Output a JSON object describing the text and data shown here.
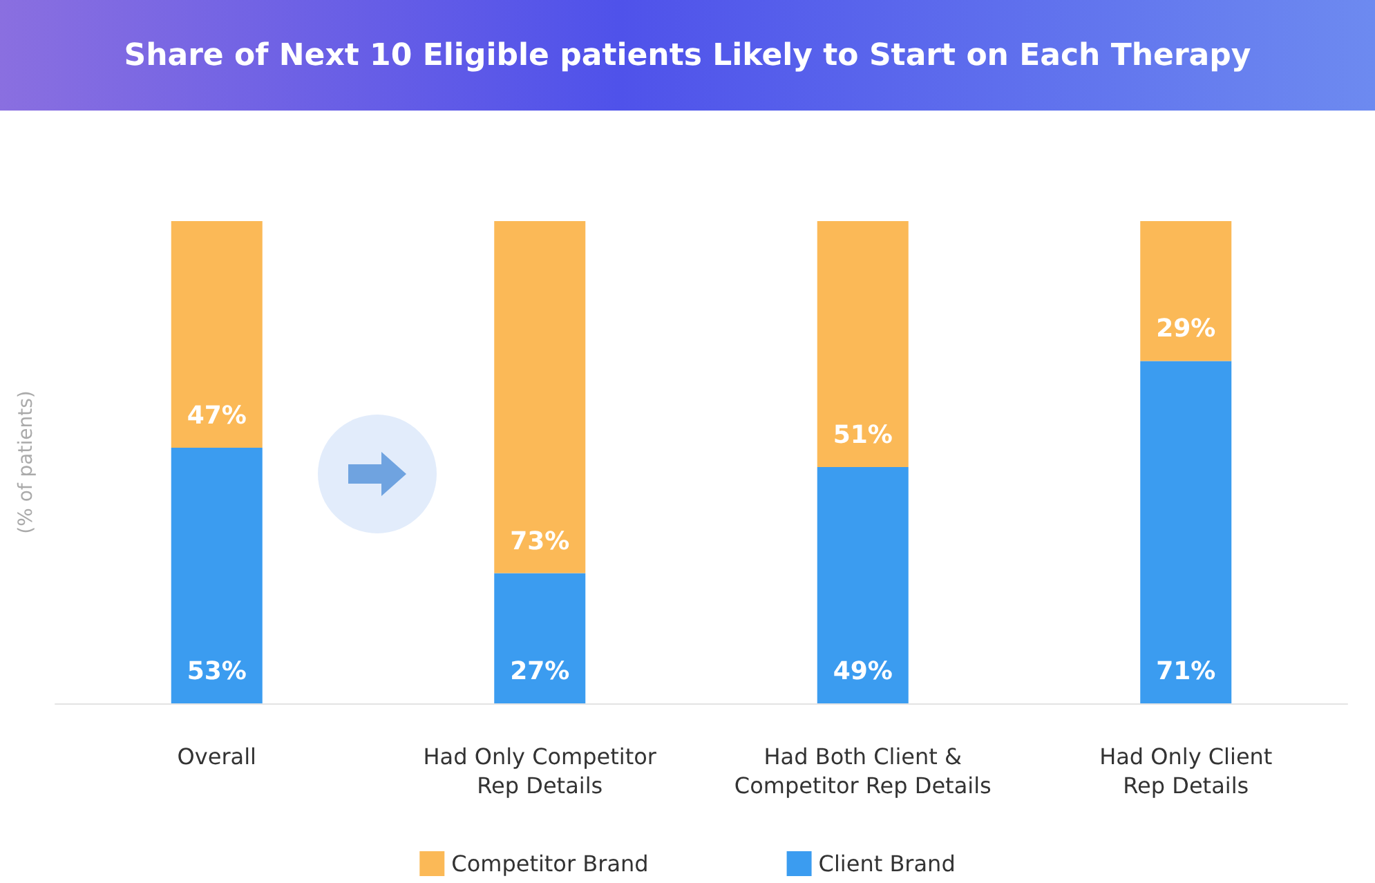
{
  "chart_data": {
    "type": "bar",
    "title": "Share of Next 10 Eligible patients Likely to Start on Each Therapy",
    "ylabel": "(% of patients)",
    "categories": [
      "Overall",
      "Had Only Competitor\nRep Details",
      "Had Both Client &\nCompetitor Rep Details",
      "Had Only Client\nRep Details"
    ],
    "series": [
      {
        "name": "Client Brand",
        "color": "#3b9cf0",
        "values": [
          53,
          27,
          49,
          71
        ],
        "value_labels": [
          "53%",
          "27%",
          "49%",
          "71%"
        ]
      },
      {
        "name": "Competitor Brand",
        "color": "#fbb957",
        "values": [
          47,
          73,
          51,
          29
        ],
        "value_labels": [
          "47%",
          "73%",
          "51%",
          "29%"
        ]
      }
    ],
    "stacked": true,
    "grid": false,
    "legend": "bottom"
  }
}
